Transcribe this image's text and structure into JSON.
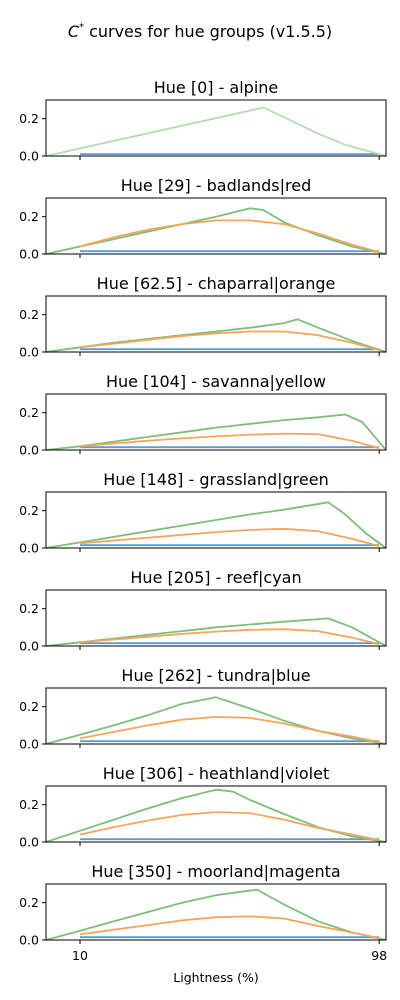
{
  "chart_data": {
    "type": "line",
    "suptitle_pre": "C",
    "suptitle_sup": "*",
    "suptitle_post": " curves for hue groups (v1.5.5)",
    "xlabel": "Lightness (%)",
    "xlim": [
      0,
      100
    ],
    "xticks": [
      10,
      98
    ],
    "ylim": [
      0,
      0.3
    ],
    "yticks": [
      0.0,
      0.2
    ],
    "ytick_labels": [
      "0.0",
      "0.2"
    ],
    "grid": false,
    "series_colors": {
      "blue": "#5b9bd5",
      "orange": "#f5a55a",
      "green": "#7cbf78",
      "light_green": "#b5dbb0"
    },
    "panels": [
      {
        "title": "Hue [0] - alpine",
        "series": [
          {
            "color": "blue",
            "x": [
              10,
              98
            ],
            "y": [
              0.01,
              0.01
            ]
          },
          {
            "color": "light_green",
            "x": [
              0,
              64,
              72,
              80,
              88,
              98,
              100
            ],
            "y": [
              0.0,
              0.26,
              0.19,
              0.12,
              0.06,
              0.01,
              0.0
            ]
          }
        ]
      },
      {
        "title": "Hue [29] - badlands|red",
        "series": [
          {
            "color": "blue",
            "x": [
              10,
              98
            ],
            "y": [
              0.015,
              0.015
            ]
          },
          {
            "color": "green",
            "x": [
              0,
              10,
              20,
              30,
              40,
              50,
              60,
              64,
              70,
              80,
              90,
              100
            ],
            "y": [
              0.0,
              0.04,
              0.08,
              0.12,
              0.16,
              0.2,
              0.245,
              0.235,
              0.17,
              0.1,
              0.04,
              0.0
            ]
          },
          {
            "color": "orange",
            "x": [
              10,
              20,
              30,
              40,
              50,
              60,
              70,
              80,
              90,
              98
            ],
            "y": [
              0.04,
              0.09,
              0.13,
              0.16,
              0.18,
              0.18,
              0.16,
              0.11,
              0.05,
              0.01
            ]
          }
        ]
      },
      {
        "title": "Hue [62.5] - chaparral|orange",
        "series": [
          {
            "color": "blue",
            "x": [
              10,
              98
            ],
            "y": [
              0.015,
              0.015
            ]
          },
          {
            "color": "green",
            "x": [
              0,
              10,
              20,
              30,
              40,
              50,
              60,
              70,
              74,
              80,
              90,
              100
            ],
            "y": [
              0.0,
              0.025,
              0.05,
              0.07,
              0.09,
              0.11,
              0.13,
              0.155,
              0.175,
              0.13,
              0.06,
              0.0
            ]
          },
          {
            "color": "orange",
            "x": [
              10,
              20,
              30,
              40,
              50,
              60,
              70,
              80,
              90,
              98
            ],
            "y": [
              0.025,
              0.045,
              0.065,
              0.085,
              0.1,
              0.11,
              0.11,
              0.09,
              0.05,
              0.01
            ]
          }
        ]
      },
      {
        "title": "Hue [104] - savanna|yellow",
        "series": [
          {
            "color": "blue",
            "x": [
              10,
              98
            ],
            "y": [
              0.015,
              0.015
            ]
          },
          {
            "color": "green",
            "x": [
              0,
              10,
              20,
              30,
              40,
              50,
              60,
              70,
              80,
              88,
              93,
              100
            ],
            "y": [
              0.0,
              0.02,
              0.045,
              0.07,
              0.095,
              0.12,
              0.14,
              0.16,
              0.175,
              0.19,
              0.15,
              0.0
            ]
          },
          {
            "color": "orange",
            "x": [
              10,
              20,
              30,
              40,
              50,
              60,
              70,
              80,
              90,
              98
            ],
            "y": [
              0.02,
              0.035,
              0.05,
              0.062,
              0.073,
              0.082,
              0.088,
              0.085,
              0.05,
              0.01
            ]
          }
        ]
      },
      {
        "title": "Hue [148] - grassland|green",
        "series": [
          {
            "color": "blue",
            "x": [
              10,
              98
            ],
            "y": [
              0.015,
              0.015
            ]
          },
          {
            "color": "green",
            "x": [
              0,
              10,
              20,
              30,
              40,
              50,
              60,
              70,
              83,
              88,
              94,
              100
            ],
            "y": [
              0.0,
              0.03,
              0.06,
              0.09,
              0.12,
              0.15,
              0.18,
              0.205,
              0.245,
              0.18,
              0.08,
              0.0
            ]
          },
          {
            "color": "orange",
            "x": [
              10,
              20,
              30,
              40,
              50,
              60,
              70,
              80,
              90,
              98
            ],
            "y": [
              0.025,
              0.04,
              0.055,
              0.07,
              0.085,
              0.097,
              0.103,
              0.09,
              0.05,
              0.01
            ]
          }
        ]
      },
      {
        "title": "Hue [205] - reef|cyan",
        "series": [
          {
            "color": "blue",
            "x": [
              10,
              98
            ],
            "y": [
              0.015,
              0.015
            ]
          },
          {
            "color": "green",
            "x": [
              0,
              10,
              20,
              30,
              40,
              50,
              60,
              70,
              83,
              90,
              100
            ],
            "y": [
              0.0,
              0.02,
              0.04,
              0.06,
              0.08,
              0.1,
              0.115,
              0.13,
              0.148,
              0.1,
              0.0
            ]
          },
          {
            "color": "orange",
            "x": [
              10,
              20,
              30,
              40,
              50,
              60,
              70,
              80,
              90,
              98
            ],
            "y": [
              0.02,
              0.035,
              0.05,
              0.065,
              0.077,
              0.087,
              0.09,
              0.08,
              0.045,
              0.01
            ]
          }
        ]
      },
      {
        "title": "Hue [262] - tundra|blue",
        "series": [
          {
            "color": "blue",
            "x": [
              10,
              98
            ],
            "y": [
              0.015,
              0.015
            ]
          },
          {
            "color": "green",
            "x": [
              0,
              10,
              20,
              30,
              40,
              50,
              60,
              70,
              80,
              90,
              100
            ],
            "y": [
              0.0,
              0.05,
              0.1,
              0.155,
              0.215,
              0.25,
              0.19,
              0.125,
              0.07,
              0.03,
              0.0
            ]
          },
          {
            "color": "orange",
            "x": [
              10,
              20,
              30,
              40,
              50,
              60,
              70,
              80,
              90,
              98
            ],
            "y": [
              0.03,
              0.065,
              0.1,
              0.13,
              0.145,
              0.14,
              0.11,
              0.07,
              0.04,
              0.01
            ]
          }
        ]
      },
      {
        "title": "Hue [306] - heathland|violet",
        "series": [
          {
            "color": "blue",
            "x": [
              10,
              98
            ],
            "y": [
              0.015,
              0.015
            ]
          },
          {
            "color": "green",
            "x": [
              0,
              10,
              20,
              30,
              40,
              50,
              55,
              60,
              70,
              80,
              90,
              100
            ],
            "y": [
              0.0,
              0.06,
              0.12,
              0.18,
              0.235,
              0.28,
              0.27,
              0.225,
              0.15,
              0.08,
              0.03,
              0.0
            ]
          },
          {
            "color": "orange",
            "x": [
              10,
              20,
              30,
              40,
              50,
              60,
              70,
              80,
              90,
              98
            ],
            "y": [
              0.04,
              0.08,
              0.115,
              0.145,
              0.16,
              0.155,
              0.12,
              0.075,
              0.04,
              0.01
            ]
          }
        ]
      },
      {
        "title": "Hue [350] - moorland|magenta",
        "series": [
          {
            "color": "blue",
            "x": [
              10,
              98
            ],
            "y": [
              0.015,
              0.015
            ]
          },
          {
            "color": "green",
            "x": [
              0,
              10,
              20,
              30,
              40,
              50,
              62,
              70,
              80,
              90,
              100
            ],
            "y": [
              0.0,
              0.05,
              0.1,
              0.15,
              0.2,
              0.24,
              0.27,
              0.19,
              0.1,
              0.04,
              0.0
            ]
          },
          {
            "color": "orange",
            "x": [
              10,
              20,
              30,
              40,
              50,
              60,
              70,
              80,
              90,
              98
            ],
            "y": [
              0.03,
              0.055,
              0.08,
              0.105,
              0.122,
              0.127,
              0.115,
              0.075,
              0.04,
              0.01
            ]
          }
        ]
      }
    ]
  }
}
